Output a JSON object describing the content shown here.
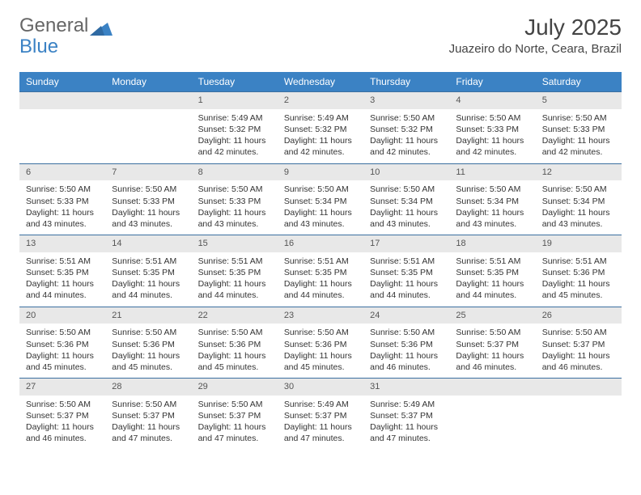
{
  "brand": {
    "part1": "General",
    "part2": "Blue"
  },
  "title": "July 2025",
  "location": "Juazeiro do Norte, Ceara, Brazil",
  "colors": {
    "header_bg": "#3b82c4",
    "header_text": "#ffffff",
    "daynum_bg": "#e8e8e8",
    "rule": "#3b6fa0",
    "body_text": "#333333",
    "logo_gray": "#666666",
    "logo_blue": "#3b82c4"
  },
  "days_of_week": [
    "Sunday",
    "Monday",
    "Tuesday",
    "Wednesday",
    "Thursday",
    "Friday",
    "Saturday"
  ],
  "weeks": [
    [
      null,
      null,
      {
        "n": "1",
        "sr": "5:49 AM",
        "ss": "5:32 PM",
        "dl": "11 hours and 42 minutes."
      },
      {
        "n": "2",
        "sr": "5:49 AM",
        "ss": "5:32 PM",
        "dl": "11 hours and 42 minutes."
      },
      {
        "n": "3",
        "sr": "5:50 AM",
        "ss": "5:32 PM",
        "dl": "11 hours and 42 minutes."
      },
      {
        "n": "4",
        "sr": "5:50 AM",
        "ss": "5:33 PM",
        "dl": "11 hours and 42 minutes."
      },
      {
        "n": "5",
        "sr": "5:50 AM",
        "ss": "5:33 PM",
        "dl": "11 hours and 42 minutes."
      }
    ],
    [
      {
        "n": "6",
        "sr": "5:50 AM",
        "ss": "5:33 PM",
        "dl": "11 hours and 43 minutes."
      },
      {
        "n": "7",
        "sr": "5:50 AM",
        "ss": "5:33 PM",
        "dl": "11 hours and 43 minutes."
      },
      {
        "n": "8",
        "sr": "5:50 AM",
        "ss": "5:33 PM",
        "dl": "11 hours and 43 minutes."
      },
      {
        "n": "9",
        "sr": "5:50 AM",
        "ss": "5:34 PM",
        "dl": "11 hours and 43 minutes."
      },
      {
        "n": "10",
        "sr": "5:50 AM",
        "ss": "5:34 PM",
        "dl": "11 hours and 43 minutes."
      },
      {
        "n": "11",
        "sr": "5:50 AM",
        "ss": "5:34 PM",
        "dl": "11 hours and 43 minutes."
      },
      {
        "n": "12",
        "sr": "5:50 AM",
        "ss": "5:34 PM",
        "dl": "11 hours and 43 minutes."
      }
    ],
    [
      {
        "n": "13",
        "sr": "5:51 AM",
        "ss": "5:35 PM",
        "dl": "11 hours and 44 minutes."
      },
      {
        "n": "14",
        "sr": "5:51 AM",
        "ss": "5:35 PM",
        "dl": "11 hours and 44 minutes."
      },
      {
        "n": "15",
        "sr": "5:51 AM",
        "ss": "5:35 PM",
        "dl": "11 hours and 44 minutes."
      },
      {
        "n": "16",
        "sr": "5:51 AM",
        "ss": "5:35 PM",
        "dl": "11 hours and 44 minutes."
      },
      {
        "n": "17",
        "sr": "5:51 AM",
        "ss": "5:35 PM",
        "dl": "11 hours and 44 minutes."
      },
      {
        "n": "18",
        "sr": "5:51 AM",
        "ss": "5:35 PM",
        "dl": "11 hours and 44 minutes."
      },
      {
        "n": "19",
        "sr": "5:51 AM",
        "ss": "5:36 PM",
        "dl": "11 hours and 45 minutes."
      }
    ],
    [
      {
        "n": "20",
        "sr": "5:50 AM",
        "ss": "5:36 PM",
        "dl": "11 hours and 45 minutes."
      },
      {
        "n": "21",
        "sr": "5:50 AM",
        "ss": "5:36 PM",
        "dl": "11 hours and 45 minutes."
      },
      {
        "n": "22",
        "sr": "5:50 AM",
        "ss": "5:36 PM",
        "dl": "11 hours and 45 minutes."
      },
      {
        "n": "23",
        "sr": "5:50 AM",
        "ss": "5:36 PM",
        "dl": "11 hours and 45 minutes."
      },
      {
        "n": "24",
        "sr": "5:50 AM",
        "ss": "5:36 PM",
        "dl": "11 hours and 46 minutes."
      },
      {
        "n": "25",
        "sr": "5:50 AM",
        "ss": "5:37 PM",
        "dl": "11 hours and 46 minutes."
      },
      {
        "n": "26",
        "sr": "5:50 AM",
        "ss": "5:37 PM",
        "dl": "11 hours and 46 minutes."
      }
    ],
    [
      {
        "n": "27",
        "sr": "5:50 AM",
        "ss": "5:37 PM",
        "dl": "11 hours and 46 minutes."
      },
      {
        "n": "28",
        "sr": "5:50 AM",
        "ss": "5:37 PM",
        "dl": "11 hours and 47 minutes."
      },
      {
        "n": "29",
        "sr": "5:50 AM",
        "ss": "5:37 PM",
        "dl": "11 hours and 47 minutes."
      },
      {
        "n": "30",
        "sr": "5:49 AM",
        "ss": "5:37 PM",
        "dl": "11 hours and 47 minutes."
      },
      {
        "n": "31",
        "sr": "5:49 AM",
        "ss": "5:37 PM",
        "dl": "11 hours and 47 minutes."
      },
      null,
      null
    ]
  ],
  "labels": {
    "sunrise": "Sunrise:",
    "sunset": "Sunset:",
    "daylight": "Daylight:"
  }
}
